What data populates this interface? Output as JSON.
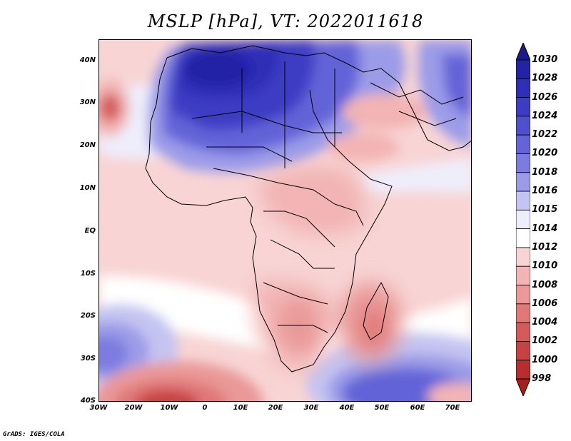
{
  "title": "MSLP [hPa], VT: 2022011618",
  "credit": "GrADS: IGES/COLA",
  "axes": {
    "lat_labels": [
      "40N",
      "30N",
      "20N",
      "10N",
      "EQ",
      "10S",
      "20S",
      "30S",
      "40S"
    ],
    "lon_labels": [
      "30W",
      "20W",
      "10W",
      "0",
      "10E",
      "20E",
      "30E",
      "40E",
      "50E",
      "60E",
      "70E"
    ]
  },
  "colorbar": {
    "labels": [
      "1030",
      "1028",
      "1026",
      "1024",
      "1022",
      "1020",
      "1018",
      "1016",
      "1015",
      "1014",
      "1012",
      "1010",
      "1008",
      "1006",
      "1004",
      "1002",
      "1000",
      "998"
    ],
    "colors": [
      "#1a1a8c",
      "#2323a6",
      "#2e2eb8",
      "#3c3cc4",
      "#4f4fcf",
      "#6464d8",
      "#7b7be0",
      "#9b9be8",
      "#c4c4f2",
      "#eeeefb",
      "#ffffff",
      "#f8d4d4",
      "#f2b4b4",
      "#ea9898",
      "#e07878",
      "#d45a5a",
      "#c74343",
      "#b82d2d",
      "#a51f1f"
    ],
    "colors_note": "ordered top (>1030) to bottom (<998)"
  },
  "map": {
    "background_pressure_color": "#f8d4d4",
    "ocean_high_color": "#9b9be8",
    "land_high_color": "#3c3cc4",
    "low_color": "#d45a5a"
  }
}
